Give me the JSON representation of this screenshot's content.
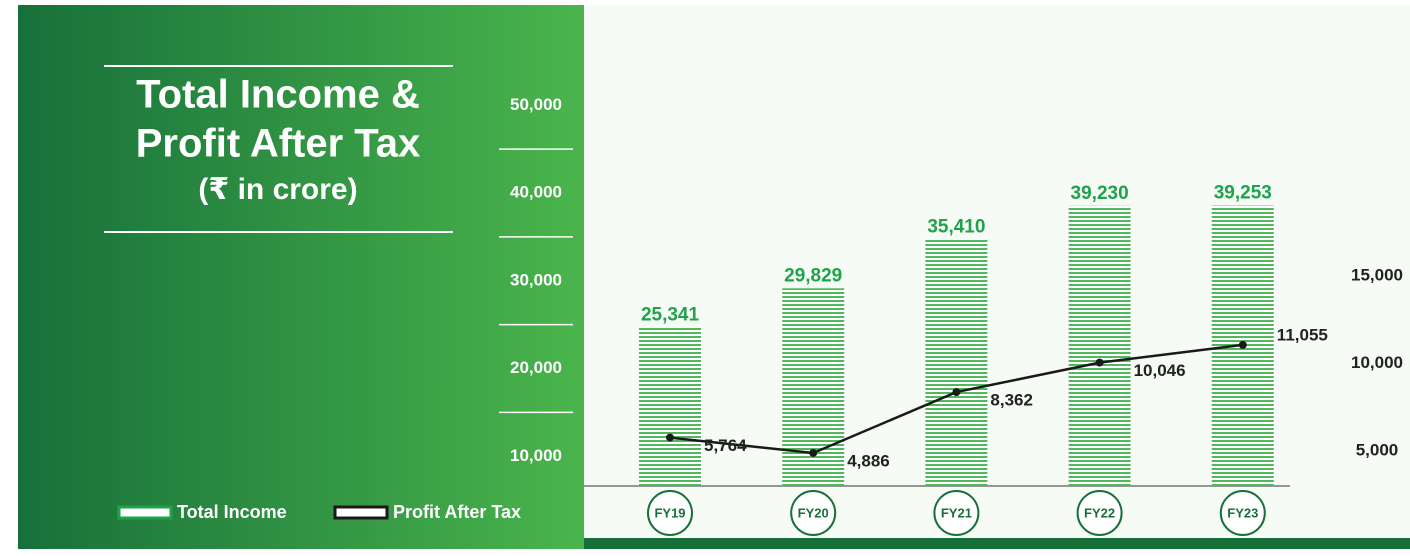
{
  "chart_data": {
    "type": "bar",
    "title": [
      "Total Income &",
      "Profit After Tax"
    ],
    "subtitle": "(₹ in crore)",
    "categories": [
      "FY19",
      "FY20",
      "FY21",
      "FY22",
      "FY23"
    ],
    "series": [
      {
        "name": "Total Income",
        "type": "bar",
        "color": "#1fa34a",
        "values": [
          25341,
          29829,
          35410,
          39230,
          39253
        ],
        "value_labels": [
          "25,341",
          "29,829",
          "35,410",
          "39,230",
          "39,253"
        ]
      },
      {
        "name": "Profit After Tax",
        "type": "line",
        "axis": "y2",
        "color": "#1a1a1a",
        "values": [
          5764,
          4886,
          8362,
          10046,
          11055
        ],
        "value_labels": [
          "5,764",
          "4,886",
          "8,362",
          "10,046",
          "11,055"
        ]
      }
    ],
    "ylim": [
      7300,
      55000
    ],
    "yticks": [
      {
        "value": 10000,
        "label": "10,000"
      },
      {
        "value": 20000,
        "label": "20,000"
      },
      {
        "value": 30000,
        "label": "30,000"
      },
      {
        "value": 40000,
        "label": "40,000"
      },
      {
        "value": 50000,
        "label": "50,000"
      }
    ],
    "y2lim": [
      3000,
      26900
    ],
    "y2ticks": [
      {
        "value": 5000,
        "label": "5,000"
      },
      {
        "value": 10000,
        "label": "10,000"
      },
      {
        "value": 15000,
        "label": "15,000"
      }
    ]
  }
}
